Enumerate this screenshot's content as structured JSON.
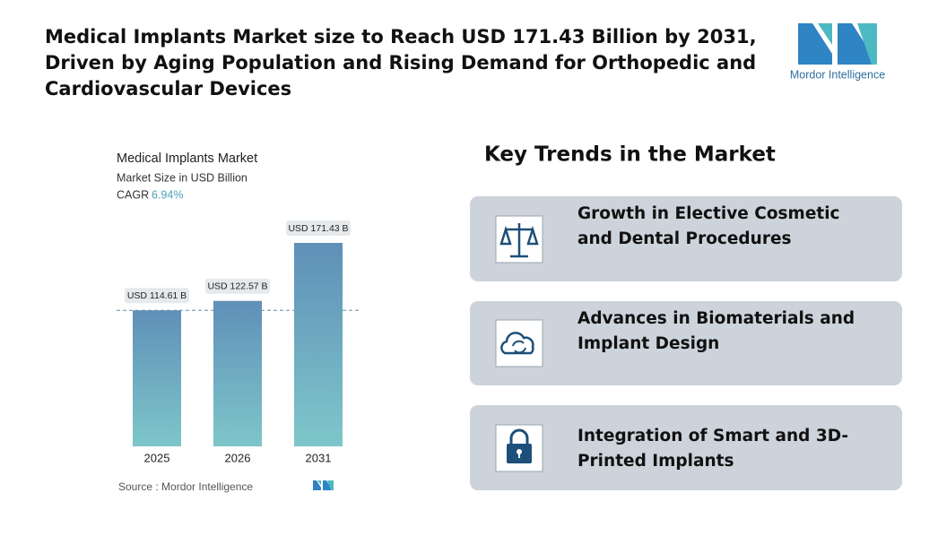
{
  "header": {
    "title_lines": [
      "Medical Implants Market size to Reach USD 171.43 Billion by 2031,",
      "Driven by Aging Population and Rising Demand for Orthopedic and",
      "Cardiovascular Devices"
    ],
    "logo_text": "Mordor Intelligence"
  },
  "chart_data": {
    "type": "bar",
    "title": "Medical Implants Market",
    "subtitle": "Market Size in USD Billion",
    "cagr_label": "CAGR",
    "cagr_value": "6.94%",
    "categories": [
      "2025",
      "2026",
      "2031"
    ],
    "values": [
      114.61,
      122.57,
      171.43
    ],
    "value_labels": [
      "USD 114.61 B",
      "USD 122.57 B",
      "USD 171.43 B"
    ],
    "color": "#5f90b8",
    "source": "Source :  Mordor Intelligence"
  },
  "trends": {
    "heading": "Key Trends in the Market",
    "items": [
      {
        "lines": [
          "Growth in Elective Cosmetic",
          "and Dental Procedures"
        ]
      },
      {
        "lines": [
          "Advances in Biomaterials and",
          "Implant Design"
        ]
      },
      {
        "lines": [
          "Integration of Smart and 3D-",
          "Printed Implants"
        ]
      }
    ]
  }
}
